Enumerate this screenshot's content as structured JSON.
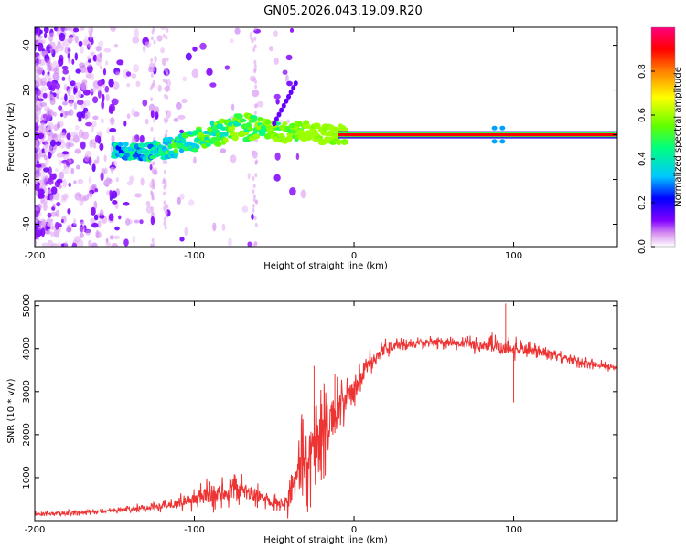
{
  "title": "GN05.2026.043.19.09.R20",
  "chart_data": [
    {
      "type": "heatmap",
      "name": "spectrogram",
      "xlabel": "Height of straight line (km)",
      "ylabel": "Frequency (Hz)",
      "xlim": [
        -200,
        165
      ],
      "ylim": [
        -50,
        48
      ],
      "xticks": [
        -200,
        -100,
        0,
        100
      ],
      "xtick_labels": [
        "-200",
        "-100",
        "0",
        "100"
      ],
      "yticks": [
        -40,
        -20,
        0,
        20,
        40
      ],
      "ytick_labels": [
        "-40",
        "-20",
        "0",
        "20",
        "40"
      ],
      "colorbar": {
        "label": "Normalized spectral amplitude",
        "range": [
          0,
          1
        ],
        "ticks": [
          0.0,
          0.2,
          0.4,
          0.6,
          0.8
        ],
        "tick_labels": [
          "0.0",
          "0.2",
          "0.4",
          "0.6",
          "0.8"
        ],
        "colors": [
          "#ffffff",
          "#d890f0",
          "#8000ff",
          "#0000ff",
          "#00c8ff",
          "#00ff80",
          "#60ff00",
          "#ffff00",
          "#ff8000",
          "#ff0000",
          "#ff0080"
        ]
      },
      "ridge": {
        "points": [
          [
            -150,
            -7
          ],
          [
            -130,
            -8
          ],
          [
            -110,
            -5
          ],
          [
            -90,
            0
          ],
          [
            -75,
            3
          ],
          [
            -60,
            4
          ],
          [
            -45,
            1
          ],
          [
            -30,
            2
          ],
          [
            -20,
            0
          ],
          [
            -10,
            0
          ],
          [
            0,
            0
          ],
          [
            165,
            0
          ]
        ],
        "amplitude_note": "low amplitude scatter for x < -60, rising to ~1.0 along the line for x > 0"
      }
    },
    {
      "type": "line",
      "name": "snr",
      "xlabel": "Height of straight line (km)",
      "ylabel": "SNR (10 * v/v)",
      "xlim": [
        -200,
        165
      ],
      "ylim": [
        0,
        5100
      ],
      "xticks": [
        -200,
        -100,
        0,
        100
      ],
      "xtick_labels": [
        "-200",
        "-100",
        "0",
        "100"
      ],
      "yticks": [
        1000,
        2000,
        3000,
        4000,
        5000
      ],
      "ytick_labels": [
        "1000",
        "2000",
        "3000",
        "4000",
        "5000"
      ],
      "color": "#ee3333",
      "envelope": {
        "x": [
          -200,
          -160,
          -130,
          -110,
          -90,
          -70,
          -55,
          -45,
          -38,
          -30,
          -20,
          -10,
          0,
          10,
          20,
          30,
          50,
          70,
          90,
          100,
          120,
          140,
          165
        ],
        "mean": [
          150,
          200,
          300,
          400,
          600,
          700,
          500,
          400,
          800,
          1500,
          2000,
          2600,
          3000,
          3700,
          4000,
          4100,
          4150,
          4100,
          4050,
          4000,
          3900,
          3700,
          3550
        ],
        "spread": [
          80,
          80,
          120,
          200,
          450,
          400,
          250,
          200,
          900,
          1400,
          1200,
          800,
          500,
          350,
          250,
          150,
          150,
          200,
          350,
          300,
          150,
          150,
          120
        ]
      },
      "spikes": [
        [
          -25,
          3600
        ],
        [
          -12,
          3400
        ],
        [
          95,
          5050
        ],
        [
          100,
          2750
        ]
      ]
    }
  ]
}
